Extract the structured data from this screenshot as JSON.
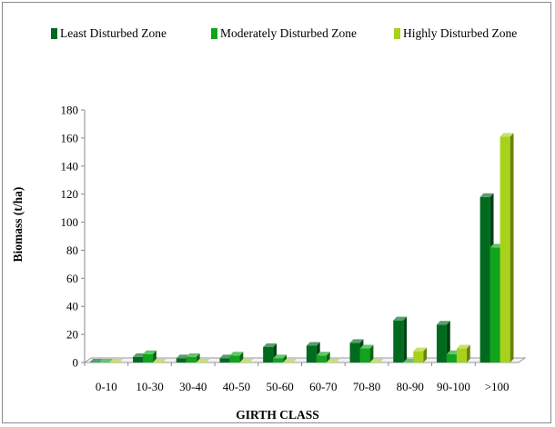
{
  "chart_data": {
    "type": "bar",
    "xlabel": "GIRTH CLASS",
    "ylabel": "Biomass (t/ha)",
    "categories": [
      "0-10",
      "10-30",
      "30-40",
      "40-50",
      "50-60",
      "60-70",
      "70-80",
      "80-90",
      "90-100",
      ">100"
    ],
    "series": [
      {
        "name": "Least Disturbed Zone",
        "color": "#006a1e",
        "values": [
          0,
          4,
          3,
          3,
          11,
          12,
          14,
          30,
          27,
          118
        ]
      },
      {
        "name": "Moderately Disturbed Zone",
        "color": "#11a51d",
        "values": [
          0,
          6,
          4,
          5,
          3,
          5,
          10,
          0,
          6,
          82
        ]
      },
      {
        "name": "Highly Disturbed Zone",
        "color": "#a8d21a",
        "values": [
          0,
          0,
          0,
          0,
          0,
          0,
          0,
          8,
          10,
          161
        ]
      }
    ],
    "ylim": [
      0,
      180
    ],
    "yticks": [
      0,
      20,
      40,
      60,
      80,
      100,
      120,
      140,
      160,
      180
    ],
    "grid": false,
    "legend": "top",
    "style": "3d-column"
  }
}
